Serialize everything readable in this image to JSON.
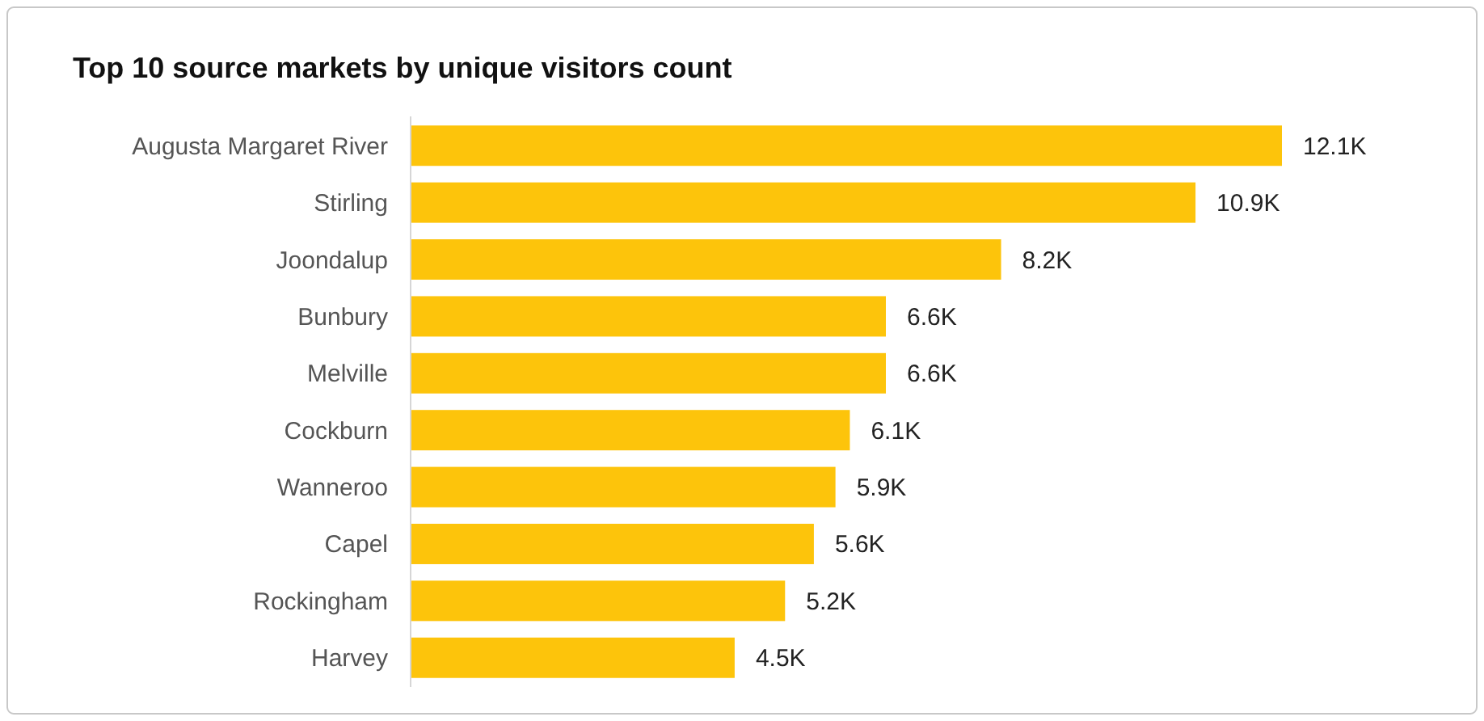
{
  "chart_data": {
    "type": "bar",
    "orientation": "horizontal",
    "title": "Top 10 source markets by unique visitors count",
    "categories": [
      "Augusta Margaret River",
      "Stirling",
      "Joondalup",
      "Bunbury",
      "Melville",
      "Cockburn",
      "Wanneroo",
      "Capel",
      "Rockingham",
      "Harvey"
    ],
    "series": [
      {
        "color": "#fdc40b",
        "values": [
          12100,
          10900,
          8200,
          6600,
          6600,
          6100,
          5900,
          5600,
          5200,
          4500
        ],
        "value_labels": [
          "12.1K",
          "10.9K",
          "8.2K",
          "6.6K",
          "6.6K",
          "6.1K",
          "5.9K",
          "5.6K",
          "5.2K",
          "4.5K"
        ]
      }
    ],
    "tick_labels": "y"
  }
}
